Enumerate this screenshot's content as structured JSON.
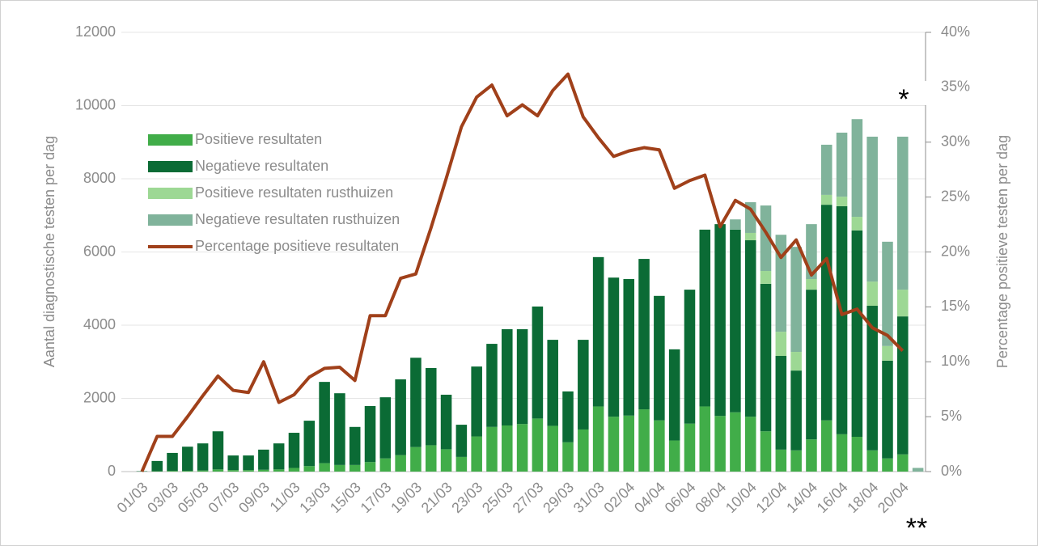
{
  "chart_data": {
    "type": "bar",
    "categories": [
      "01/03",
      null,
      "03/03",
      null,
      "05/03",
      null,
      "07/03",
      null,
      "09/03",
      null,
      "11/03",
      null,
      "13/03",
      null,
      "15/03",
      null,
      "17/03",
      null,
      "19/03",
      null,
      "21/03",
      null,
      "23/03",
      null,
      "25/03",
      null,
      "27/03",
      null,
      "29/03",
      null,
      "31/03",
      null,
      "02/04",
      null,
      "04/04",
      null,
      "06/04",
      null,
      "08/04",
      null,
      "10/04",
      null,
      "12/04",
      null,
      "14/04",
      null,
      "16/04",
      null,
      "18/04",
      null,
      "20/04",
      null
    ],
    "series": [
      {
        "name": "Positieve resultaten",
        "color": "#41ad49",
        "values": [
          0,
          10,
          20,
          20,
          30,
          60,
          40,
          40,
          50,
          60,
          100,
          150,
          230,
          180,
          180,
          260,
          360,
          450,
          670,
          720,
          610,
          400,
          960,
          1220,
          1260,
          1300,
          1450,
          1250,
          800,
          1150,
          1780,
          1500,
          1530,
          1700,
          1400,
          850,
          1310,
          1780,
          1520,
          1620,
          1500,
          1100,
          600,
          580,
          880,
          1400,
          1020,
          950,
          580,
          360,
          470,
          0
        ]
      },
      {
        "name": "Negatieve resultaten",
        "color": "#0b6b35",
        "values": [
          10,
          280,
          490,
          660,
          740,
          1040,
          400,
          400,
          550,
          710,
          960,
          1240,
          2220,
          1960,
          1040,
          1530,
          1670,
          2070,
          2440,
          2110,
          1490,
          880,
          1910,
          2270,
          2630,
          2590,
          3060,
          2350,
          1390,
          2450,
          4080,
          3800,
          3730,
          4110,
          3400,
          2490,
          3660,
          4830,
          5240,
          4990,
          4820,
          4030,
          2560,
          2180,
          4090,
          5890,
          6230,
          5640,
          3950,
          2670,
          3770,
          0
        ]
      },
      {
        "name": "Positieve resultaten rusthuizen",
        "color": "#9dd894",
        "values": [
          null,
          null,
          null,
          null,
          null,
          null,
          null,
          null,
          null,
          null,
          null,
          null,
          null,
          null,
          null,
          null,
          null,
          null,
          null,
          null,
          null,
          null,
          null,
          null,
          null,
          null,
          null,
          null,
          null,
          null,
          null,
          null,
          null,
          null,
          null,
          null,
          null,
          null,
          0,
          0,
          200,
          350,
          660,
          510,
          290,
          270,
          260,
          370,
          660,
          400,
          730,
          0
        ]
      },
      {
        "name": "Negatieve resultaten rusthuizen",
        "color": "#80b39b",
        "values": [
          null,
          null,
          null,
          null,
          null,
          null,
          null,
          null,
          null,
          null,
          null,
          null,
          null,
          null,
          null,
          null,
          null,
          null,
          null,
          null,
          null,
          null,
          null,
          null,
          null,
          null,
          null,
          null,
          null,
          null,
          null,
          null,
          null,
          null,
          null,
          null,
          null,
          null,
          0,
          280,
          840,
          1790,
          2650,
          2870,
          1500,
          1370,
          1750,
          2670,
          3960,
          2850,
          4180,
          100
        ]
      },
      {
        "name": "Percentage positieve resultaten",
        "type": "line",
        "axis": "y2",
        "color": "#a0401a",
        "values": [
          0,
          3.2,
          3.2,
          5.0,
          6.9,
          8.7,
          7.4,
          7.2,
          10.0,
          6.3,
          7.0,
          8.6,
          9.4,
          9.5,
          8.3,
          14.2,
          14.2,
          17.6,
          18.0,
          22.2,
          26.7,
          31.4,
          34.1,
          35.2,
          32.4,
          33.4,
          32.4,
          34.7,
          36.2,
          32.3,
          30.4,
          28.7,
          29.2,
          29.5,
          29.3,
          25.8,
          26.5,
          27.0,
          22.3,
          24.7,
          23.9,
          21.8,
          19.5,
          21.1,
          17.9,
          19.4,
          14.3,
          14.8,
          13.1,
          12.4,
          11.0,
          null
        ]
      }
    ],
    "y_label": "Aantal diagnostische testen per dag",
    "y2_label": "Percentage positieve testen per dag",
    "ylim": [
      0,
      12000
    ],
    "yticks": [
      0,
      2000,
      4000,
      6000,
      8000,
      10000,
      12000
    ],
    "y2lim": [
      0,
      40
    ],
    "y2ticks": [
      {
        "value": 0,
        "label": "0%"
      },
      {
        "value": 5,
        "label": "5%"
      },
      {
        "value": 10,
        "label": "10%"
      },
      {
        "value": 15,
        "label": "15%"
      },
      {
        "value": 20,
        "label": "20%"
      },
      {
        "value": 25,
        "label": "25%"
      },
      {
        "value": 30,
        "label": "30%"
      },
      {
        "value": 35,
        "label": "35%"
      },
      {
        "value": 40,
        "label": "40%"
      }
    ],
    "grid": true,
    "stacked": true,
    "legend": "upper left",
    "annotations": [
      "*",
      "**"
    ]
  }
}
